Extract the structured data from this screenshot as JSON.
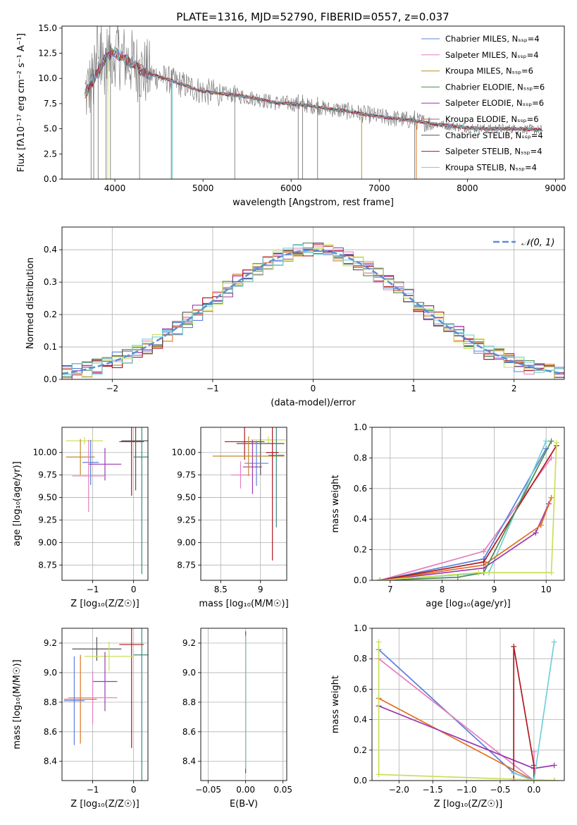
{
  "figure": {
    "title": "PLATE=1316, MJD=52790, FIBERID=0557, z=0.037"
  },
  "colors": {
    "model_palette": [
      "#5b7fdb",
      "#e57fbe",
      "#c28a2a",
      "#4f8a4f",
      "#9b37b0",
      "#b06050",
      "#555555",
      "#b0171f",
      "#70d0d8"
    ],
    "data": "#808080",
    "lime": "#c8e05a",
    "orange": "#e07020",
    "gauss": "#5b8fd5"
  },
  "chart_data": [
    {
      "id": "spectrum",
      "type": "line",
      "xlabel": "wavelength [Angstrom, rest frame]",
      "ylabel": "Flux [fλ10⁻¹⁷ erg cm⁻² s⁻¹ A⁻¹]",
      "xlim": [
        3400,
        9100
      ],
      "ylim": [
        0,
        15.2
      ],
      "xticks": [
        4000,
        5000,
        6000,
        7000,
        8000,
        9000
      ],
      "yticks": [
        0.0,
        2.5,
        5.0,
        7.5,
        10.0,
        12.5,
        15.0
      ],
      "legend_position": "upper-right",
      "legend": [
        {
          "label": "Chabrier MILES, N_SSP=4",
          "color": "#5b7fdb"
        },
        {
          "label": "Salpeter MILES, N_SSP=4",
          "color": "#e57fbe"
        },
        {
          "label": "Kroupa MILES, N_SSP=6",
          "color": "#c28a2a"
        },
        {
          "label": "Chabrier ELODIE, N_SSP=6",
          "color": "#4f8a4f"
        },
        {
          "label": "Salpeter ELODIE, N_SSP=6",
          "color": "#9b37b0"
        },
        {
          "label": "Kroupa ELODIE, N_SSP=6",
          "color": "#b06050"
        },
        {
          "label": "Chabrier STELIB, N_SSP=4",
          "color": "#555555"
        },
        {
          "label": "Salpeter STELIB, N_SSP=4",
          "color": "#b0171f"
        },
        {
          "label": "Kroupa STELIB, N_SSP=4",
          "color": "#70d0d8"
        }
      ],
      "continuum": {
        "x": [
          3650,
          3700,
          3800,
          3900,
          4000,
          4100,
          4200,
          4300,
          4400,
          4500,
          4600,
          4700,
          4800,
          4900,
          5000,
          5200,
          5400,
          5600,
          5800,
          6000,
          6200,
          6400,
          6600,
          6800,
          7000,
          7200,
          7400,
          7600,
          7800,
          8000,
          8200,
          8400,
          8600,
          8800
        ],
        "y": [
          8.3,
          9.0,
          10.5,
          12.0,
          12.6,
          12.0,
          11.5,
          10.8,
          10.4,
          10.2,
          9.9,
          9.6,
          9.3,
          9.0,
          8.7,
          8.5,
          8.3,
          8.0,
          7.6,
          7.5,
          7.3,
          7.0,
          6.8,
          6.5,
          6.2,
          6.0,
          5.8,
          5.5,
          5.3,
          5.1,
          5.0,
          5.0,
          5.0,
          4.9
        ]
      }
    },
    {
      "id": "residuals",
      "type": "histogram",
      "xlabel": "(data-model)/error",
      "ylabel": "Normed distribution",
      "xlim": [
        -2.5,
        2.5
      ],
      "ylim": [
        0,
        0.47
      ],
      "xticks": [
        -2,
        -1,
        0,
        1,
        2
      ],
      "yticks": [
        0.0,
        0.1,
        0.2,
        0.3,
        0.4
      ],
      "grid": true,
      "legend_label": "𝒩(0, 1)",
      "bin_width": 0.1,
      "gaussian": {
        "mean": 0,
        "sigma": 1
      }
    },
    {
      "id": "age-vs-Z",
      "type": "errorbar",
      "xlabel": "Z [log₁₀(Z/Z☉)]",
      "ylabel": "age  [log₁₀(age/yr)]",
      "xlim": [
        -1.75,
        0.35
      ],
      "ylim": [
        8.58,
        10.28
      ],
      "xticks": [
        -1,
        0
      ],
      "yticks": [
        8.75,
        9.0,
        9.25,
        9.5,
        9.75,
        10.0
      ],
      "ytick_labels": [
        "8.75",
        "9.00",
        "9.25",
        "9.50",
        "9.75",
        "10.00"
      ],
      "grid": true,
      "points": [
        {
          "x": -1.2,
          "xerr": 0.45,
          "y": 10.13,
          "yerr": 0.04,
          "color": "#c8e05a"
        },
        {
          "x": -1.3,
          "xerr": 0.35,
          "y": 9.95,
          "yerr": 0.2,
          "color": "#c28a2a"
        },
        {
          "x": -1.05,
          "xerr": 0.2,
          "y": 9.89,
          "yerr": 0.25,
          "color": "#5b7fdb"
        },
        {
          "x": -0.7,
          "xerr": 0.4,
          "y": 9.87,
          "yerr": 0.18,
          "color": "#9b37b0"
        },
        {
          "x": -1.1,
          "xerr": 0.4,
          "y": 9.74,
          "yerr": 0.4,
          "color": "#e57fbe"
        },
        {
          "x": -0.05,
          "xerr": 0.3,
          "y": 10.12,
          "yerr": 0.6,
          "color": "#b0171f"
        },
        {
          "x": 0.05,
          "xerr": 0.35,
          "y": 10.13,
          "yerr": 0.55,
          "color": "#555555"
        },
        {
          "x": 0.2,
          "xerr": 0.2,
          "y": 9.95,
          "yerr": 1.3,
          "color": "#3a8a80"
        }
      ]
    },
    {
      "id": "age-vs-mass",
      "type": "errorbar",
      "xlabel": "mass [log₁₀(M/M☉)]",
      "ylabel": "",
      "xlim": [
        8.25,
        9.33
      ],
      "ylim": [
        8.58,
        10.28
      ],
      "xticks": [
        8.5,
        9.0
      ],
      "yticks": [
        8.75,
        9.0,
        9.25,
        9.5,
        9.75,
        10.0
      ],
      "ytick_labels": [
        "8.75",
        "9.00",
        "9.25",
        "9.50",
        "9.75",
        "10.00"
      ],
      "grid": true,
      "points": [
        {
          "x": 9.1,
          "xerr": 0.22,
          "y": 10.14,
          "yerr": 0.04,
          "color": "#c8e05a"
        },
        {
          "x": 8.8,
          "xerr": 0.25,
          "y": 10.12,
          "yerr": 0.2,
          "color": "#b0171f"
        },
        {
          "x": 9.0,
          "xerr": 0.3,
          "y": 10.1,
          "yerr": 0.35,
          "color": "#555555"
        },
        {
          "x": 8.95,
          "xerr": 0.15,
          "y": 9.88,
          "yerr": 0.25,
          "color": "#5b7fdb"
        },
        {
          "x": 8.9,
          "xerr": 0.12,
          "y": 9.84,
          "yerr": 0.3,
          "color": "#9b37b0"
        },
        {
          "x": 8.75,
          "xerr": 0.12,
          "y": 9.75,
          "yerr": 0.15,
          "color": "#e57fbe"
        },
        {
          "x": 8.85,
          "xerr": 0.45,
          "y": 9.96,
          "yerr": 0.22,
          "color": "#c28a2a"
        },
        {
          "x": 9.2,
          "xerr": 0.1,
          "y": 9.97,
          "yerr": 0.8,
          "color": "#3a8a80"
        },
        {
          "x": 9.15,
          "xerr": 0.08,
          "y": 10.0,
          "yerr": 1.2,
          "color": "#b0171f"
        }
      ]
    },
    {
      "id": "weight-vs-age",
      "type": "line",
      "xlabel": "age  [log₁₀(age/yr)]",
      "ylabel": "mass weight",
      "xlim": [
        6.65,
        10.35
      ],
      "ylim": [
        0,
        1.0
      ],
      "xticks": [
        7,
        8,
        9,
        10
      ],
      "yticks": [
        0.0,
        0.2,
        0.4,
        0.6,
        0.8,
        1.0
      ],
      "grid": true,
      "series": [
        {
          "color": "#e57fbe",
          "x": [
            6.8,
            8.8,
            10.1
          ],
          "y": [
            0.0,
            0.19,
            0.8
          ]
        },
        {
          "color": "#5b7fdb",
          "x": [
            6.8,
            8.8,
            10.0
          ],
          "y": [
            0.0,
            0.14,
            0.86
          ]
        },
        {
          "color": "#70d0d8",
          "x": [
            6.8,
            8.9,
            10.0
          ],
          "y": [
            0.0,
            0.05,
            0.91
          ]
        },
        {
          "color": "#9b37b0",
          "x": [
            6.8,
            8.8,
            9.8,
            10.05
          ],
          "y": [
            0.0,
            0.08,
            0.31,
            0.5
          ]
        },
        {
          "color": "#e07020",
          "x": [
            6.8,
            8.8,
            9.9,
            10.1
          ],
          "y": [
            0.0,
            0.1,
            0.36,
            0.54
          ]
        },
        {
          "color": "#b0171f",
          "x": [
            6.8,
            8.8,
            10.2
          ],
          "y": [
            0.0,
            0.12,
            0.88
          ]
        },
        {
          "color": "#4f8a4f",
          "x": [
            6.8,
            8.3,
            8.8,
            10.1
          ],
          "y": [
            0.0,
            0.02,
            0.05,
            0.91
          ]
        },
        {
          "color": "#c8e05a",
          "x": [
            6.8,
            8.7,
            10.1,
            10.2
          ],
          "y": [
            0.0,
            0.05,
            0.05,
            0.9
          ]
        }
      ]
    },
    {
      "id": "mass-vs-Z",
      "type": "errorbar",
      "xlabel": "Z [log₁₀(Z/Z☉)]",
      "ylabel": "mass [log₁₀(M/M☉)]",
      "xlim": [
        -1.75,
        0.35
      ],
      "ylim": [
        8.27,
        9.3
      ],
      "xticks": [
        -1,
        0
      ],
      "yticks": [
        8.4,
        8.6,
        8.8,
        9.0,
        9.2
      ],
      "grid": true,
      "points": [
        {
          "x": -0.9,
          "xerr": 0.6,
          "y": 9.16,
          "yerr": 0.08,
          "color": "#555555"
        },
        {
          "x": -0.05,
          "xerr": 0.3,
          "y": 9.19,
          "yerr": 0.7,
          "color": "#b0171f"
        },
        {
          "x": 0.2,
          "xerr": 0.2,
          "y": 9.12,
          "yerr": 0.85,
          "color": "#3a8a80"
        },
        {
          "x": -0.6,
          "xerr": 0.6,
          "y": 9.11,
          "yerr": 0.1,
          "color": "#c8e05a"
        },
        {
          "x": -0.7,
          "xerr": 0.3,
          "y": 8.94,
          "yerr": 0.2,
          "color": "#9b37b0"
        },
        {
          "x": -1.0,
          "xerr": 0.6,
          "y": 8.83,
          "yerr": 0.18,
          "color": "#e57fbe"
        },
        {
          "x": -1.3,
          "xerr": 0.4,
          "y": 8.82,
          "yerr": 0.3,
          "color": "#e07020"
        },
        {
          "x": -1.45,
          "xerr": 0.25,
          "y": 8.81,
          "yerr": 0.3,
          "color": "#5b7fdb"
        }
      ]
    },
    {
      "id": "mass-vs-EBV",
      "type": "errorbar",
      "xlabel": "E(B-V)",
      "ylabel": "",
      "xlim": [
        -0.06,
        0.055
      ],
      "ylim": [
        8.27,
        9.3
      ],
      "xticks": [
        -0.05,
        0.0,
        0.05
      ],
      "xtick_labels": [
        "−0.05",
        "0.00",
        "0.05"
      ],
      "yticks": [
        8.4,
        8.6,
        8.8,
        9.0,
        9.2
      ],
      "grid": true,
      "points": [
        {
          "x": 0.0,
          "xerr": 0.0,
          "y": 8.8,
          "yerr": 0.48,
          "color": "#555555"
        },
        {
          "x": 0.0,
          "xerr": 0.0,
          "y": 8.8,
          "yerr": 0.45,
          "color": "#70d0d8"
        }
      ]
    },
    {
      "id": "weight-vs-Z",
      "type": "line",
      "xlabel": "Z [log₁₀(Z/Z☉)]",
      "ylabel": "mass weight",
      "xlim": [
        -2.4,
        0.45
      ],
      "ylim": [
        0,
        1.0
      ],
      "xticks": [
        -2.0,
        -1.5,
        -1.0,
        -0.5,
        0.0
      ],
      "xtick_labels": [
        "−2.0",
        "−1.5",
        "−1.0",
        "−0.5",
        "0.0"
      ],
      "yticks": [
        0.0,
        0.2,
        0.4,
        0.6,
        0.8,
        1.0
      ],
      "grid": true,
      "series": [
        {
          "color": "#5b7fdb",
          "x": [
            -2.3,
            -0.3,
            0.0
          ],
          "y": [
            0.86,
            0.05,
            0.0
          ]
        },
        {
          "color": "#e57fbe",
          "x": [
            -2.3,
            0.0,
            0.0
          ],
          "y": [
            0.8,
            0.0,
            0.19
          ]
        },
        {
          "color": "#e07020",
          "x": [
            -2.3,
            0.0
          ],
          "y": [
            0.54,
            0.0
          ]
        },
        {
          "color": "#9b37b0",
          "x": [
            -2.3,
            0.0,
            0.3
          ],
          "y": [
            0.49,
            0.08,
            0.1
          ]
        },
        {
          "color": "#b0171f",
          "x": [
            -0.3,
            -0.3,
            0.0,
            0.0,
            0.3
          ],
          "y": [
            0.0,
            0.88,
            0.1,
            0.0,
            0.0
          ]
        },
        {
          "color": "#70d0d8",
          "x": [
            -0.3,
            0.0,
            0.3
          ],
          "y": [
            0.05,
            0.0,
            0.91
          ]
        },
        {
          "color": "#c8e05a",
          "x": [
            -2.3,
            -2.3,
            0.3
          ],
          "y": [
            0.91,
            0.04,
            0.0
          ]
        }
      ]
    }
  ]
}
